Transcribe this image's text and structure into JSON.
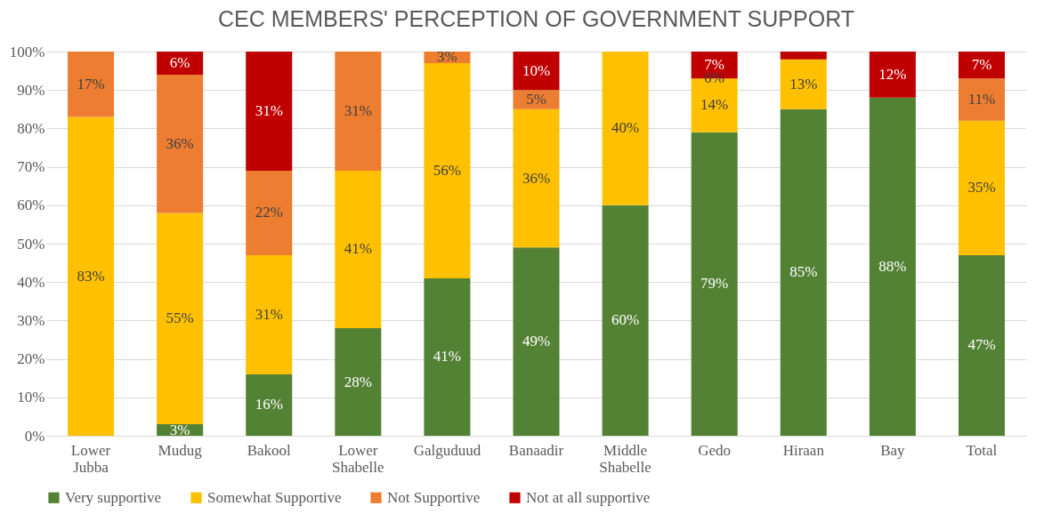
{
  "chart_data": {
    "type": "bar",
    "stacked": true,
    "title": "CEC MEMBERS' PERCEPTION OF GOVERNMENT SUPPORT",
    "categories": [
      "Lower Jubba",
      "Mudug",
      "Bakool",
      "Lower Shabelle",
      "Galguduud",
      "Banaadir",
      "Middle Shabelle",
      "Gedo",
      "Hiraan",
      "Bay",
      "Total"
    ],
    "series": [
      {
        "name": "Very supportive",
        "color": "#548235",
        "values": [
          0,
          3,
          16,
          28,
          41,
          49,
          60,
          79,
          85,
          88,
          47
        ],
        "value_labels": [
          null,
          "3%",
          "16%",
          "28%",
          "41%",
          "49%",
          "60%",
          "79%",
          "85%",
          "88%",
          "47%"
        ]
      },
      {
        "name": "Somewhat Supportive",
        "color": "#ffc000",
        "values": [
          83,
          55,
          31,
          41,
          56,
          36,
          40,
          14,
          13,
          0,
          35
        ],
        "value_labels": [
          "83%",
          "55%",
          "31%",
          "41%",
          "56%",
          "36%",
          "40%",
          "14%",
          "13%",
          null,
          "35%"
        ]
      },
      {
        "name": "Not Supportive",
        "color": "#ed7d31",
        "values": [
          17,
          36,
          22,
          31,
          3,
          5,
          0,
          0,
          0,
          0,
          11
        ],
        "value_labels": [
          "17%",
          "36%",
          "22%",
          "31%",
          "3%",
          "5%",
          null,
          "0%",
          null,
          null,
          "11%"
        ]
      },
      {
        "name": "Not at all supportive",
        "color": "#c00000",
        "values": [
          0,
          6,
          31,
          0,
          0,
          10,
          0,
          7,
          2,
          12,
          7
        ],
        "value_labels": [
          null,
          "6%",
          "31%",
          null,
          null,
          "10%",
          null,
          "7%",
          null,
          "12%",
          "7%"
        ]
      }
    ],
    "ylim": [
      0,
      100
    ],
    "yticks": [
      {
        "value": 0,
        "label": "0%"
      },
      {
        "value": 10,
        "label": "10%"
      },
      {
        "value": 20,
        "label": "20%"
      },
      {
        "value": 30,
        "label": "30%"
      },
      {
        "value": 40,
        "label": "40%"
      },
      {
        "value": 50,
        "label": "50%"
      },
      {
        "value": 60,
        "label": "60%"
      },
      {
        "value": 70,
        "label": "70%"
      },
      {
        "value": 80,
        "label": "80%"
      },
      {
        "value": 90,
        "label": "90%"
      },
      {
        "value": 100,
        "label": "100%"
      }
    ],
    "grid": "y",
    "legend": "bottom"
  }
}
